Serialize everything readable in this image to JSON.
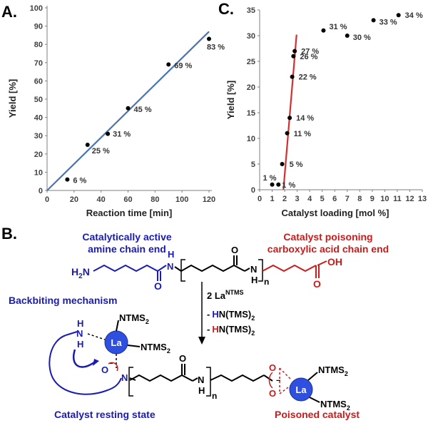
{
  "panels": {
    "a": "A.",
    "b": "B.",
    "c": "C."
  },
  "chart_data": [
    {
      "type": "scatter",
      "xlabel": "Reaction time [min]",
      "ylabel": "Yield [%]",
      "xlim": [
        0,
        120
      ],
      "ylim": [
        0,
        100
      ],
      "xticks": [
        "0",
        "20",
        "40",
        "60",
        "80",
        "100",
        "120"
      ],
      "yticks": [
        "0",
        "10",
        "20",
        "30",
        "40",
        "50",
        "60",
        "70",
        "80",
        "90",
        "100"
      ],
      "x": [
        15,
        30,
        45,
        60,
        90,
        120
      ],
      "y": [
        6,
        25,
        31,
        45,
        69,
        83
      ],
      "point_labels": [
        "6 %",
        "25 %",
        "31 %",
        "45 %",
        "69 %",
        "83 %"
      ],
      "trendline": {
        "x": [
          0,
          120
        ],
        "y": [
          0,
          87
        ],
        "color": "#4a76ad"
      },
      "grid": false
    },
    {
      "type": "scatter",
      "xlabel": "Catalyst loading [mol %]",
      "ylabel": "Yield [%]",
      "xlim": [
        0,
        13
      ],
      "ylim": [
        0,
        35
      ],
      "xticks": [
        "0",
        "1",
        "2",
        "3",
        "4",
        "5",
        "6",
        "7",
        "8",
        "9",
        "10",
        "11",
        "12",
        "13"
      ],
      "yticks": [
        "0",
        "5",
        "10",
        "15",
        "20",
        "25",
        "30",
        "35"
      ],
      "x": [
        1.0,
        1.5,
        1.8,
        2.2,
        2.4,
        2.6,
        2.7,
        2.8,
        5.1,
        7.0,
        9.1,
        11.1
      ],
      "y": [
        1,
        1,
        5,
        11,
        14,
        22,
        26,
        27,
        31,
        30,
        33,
        34
      ],
      "point_labels": [
        "1 %",
        "1 %",
        "5 %",
        "11 %",
        "14 %",
        "22 %",
        "26 %",
        "27 %",
        "31 %",
        "30 %",
        "33 %",
        "34 %"
      ],
      "trendline": {
        "x": [
          1.9,
          2.95
        ],
        "y": [
          0,
          30.2
        ],
        "color": "#d32f2f"
      },
      "grid": false
    }
  ],
  "scheme": {
    "amine_title_1": "Catalytically active",
    "amine_title_2": "amine chain end",
    "acid_title_1": "Catalyst poisoning",
    "acid_title_2": "carboxylic acid chain end",
    "backbiting": "Backbiting mechanism",
    "resting": "Catalyst resting state",
    "poisoned": "Poisoned catalyst",
    "la": "La",
    "ntms2": "NTMS",
    "sub2": "2",
    "h2n": "H",
    "two_la": "2 La",
    "la_sup": "NTMS",
    "h_blue": "H",
    "h_red": "H",
    "n_tms": "N(TMS)",
    "dash": "-",
    "n": "N",
    "h": "H",
    "o": "O",
    "oh": "OH",
    "sub_n": "n",
    "neg": "−",
    "amine_n": "N"
  },
  "colors": {
    "blue": "#1a1ab4",
    "red": "#cc1a1a",
    "ball": "#2f4fe0",
    "black": "#000000"
  }
}
